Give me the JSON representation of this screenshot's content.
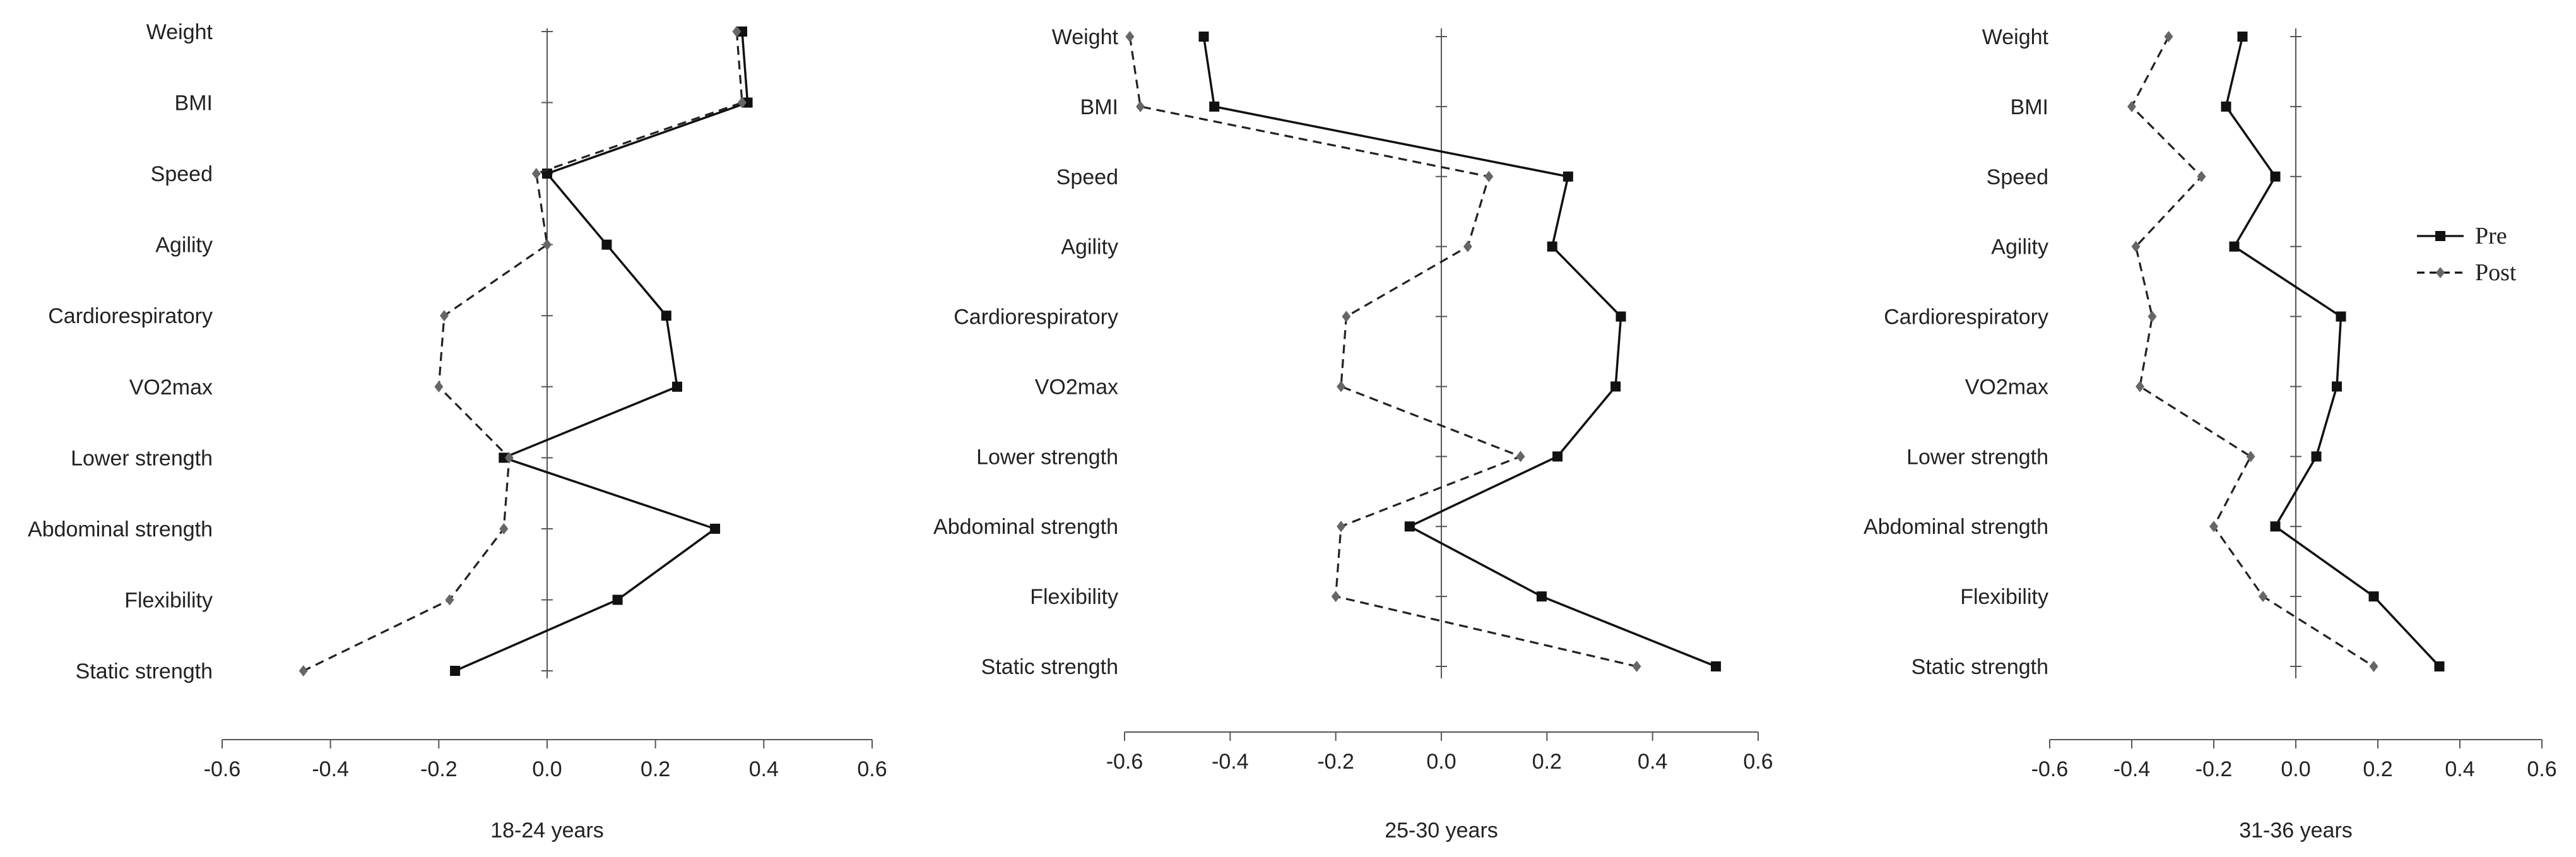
{
  "chart_data": [
    {
      "type": "line",
      "orientation": "horizontal-profile",
      "xlabel": "18-24 years",
      "xlim": [
        -0.6,
        0.6
      ],
      "xticks": [
        -0.6,
        -0.4,
        -0.2,
        0.0,
        0.2,
        0.4,
        0.6
      ],
      "categories": [
        "Weight",
        "BMI",
        "Speed",
        "Agility",
        "Cardiorespiratory",
        "VO2max",
        "Lower strength",
        "Abdominal strength",
        "Flexibility",
        "Static strength"
      ],
      "series": [
        {
          "name": "Pre",
          "values": [
            0.36,
            0.37,
            0.0,
            0.11,
            0.22,
            0.24,
            -0.08,
            0.31,
            0.13,
            -0.17
          ]
        },
        {
          "name": "Post",
          "values": [
            0.35,
            0.36,
            -0.02,
            0.0,
            -0.19,
            -0.2,
            -0.07,
            -0.08,
            -0.18,
            -0.45
          ]
        }
      ]
    },
    {
      "type": "line",
      "orientation": "horizontal-profile",
      "xlabel": "25-30 years",
      "xlim": [
        -0.6,
        0.6
      ],
      "xticks": [
        -0.6,
        -0.4,
        -0.2,
        0.0,
        0.2,
        0.4,
        0.6
      ],
      "categories": [
        "Weight",
        "BMI",
        "Speed",
        "Agility",
        "Cardiorespiratory",
        "VO2max",
        "Lower strength",
        "Abdominal strength",
        "Flexibility",
        "Static strength"
      ],
      "series": [
        {
          "name": "Pre",
          "values": [
            -0.45,
            -0.43,
            0.24,
            0.21,
            0.34,
            0.33,
            0.22,
            -0.06,
            0.19,
            0.52
          ]
        },
        {
          "name": "Post",
          "values": [
            -0.59,
            -0.57,
            0.09,
            0.05,
            -0.18,
            -0.19,
            0.15,
            -0.19,
            -0.2,
            0.37
          ]
        }
      ]
    },
    {
      "type": "line",
      "orientation": "horizontal-profile",
      "xlabel": "31-36 years",
      "xlim": [
        -0.6,
        0.6
      ],
      "xticks": [
        -0.6,
        -0.4,
        -0.2,
        0.0,
        0.2,
        0.4,
        0.6
      ],
      "categories": [
        "Weight",
        "BMI",
        "Speed",
        "Agility",
        "Cardiorespiratory",
        "VO2max",
        "Lower strength",
        "Abdominal strength",
        "Flexibility",
        "Static strength"
      ],
      "series": [
        {
          "name": "Pre",
          "values": [
            -0.13,
            -0.17,
            -0.05,
            -0.15,
            0.11,
            0.1,
            0.05,
            -0.05,
            0.19,
            0.35
          ]
        },
        {
          "name": "Post",
          "values": [
            -0.31,
            -0.4,
            -0.23,
            -0.39,
            -0.35,
            -0.38,
            -0.11,
            -0.2,
            -0.08,
            0.19
          ]
        }
      ]
    }
  ],
  "legend": {
    "placement": "right",
    "entries": [
      {
        "name": "Pre",
        "style": "solid",
        "marker": "square",
        "color": "#111111"
      },
      {
        "name": "Post",
        "style": "dashed",
        "marker": "diamond",
        "color": "#666666"
      }
    ]
  },
  "colors": {
    "pre": "#111111",
    "post": "#666666",
    "axis": "#555555"
  }
}
